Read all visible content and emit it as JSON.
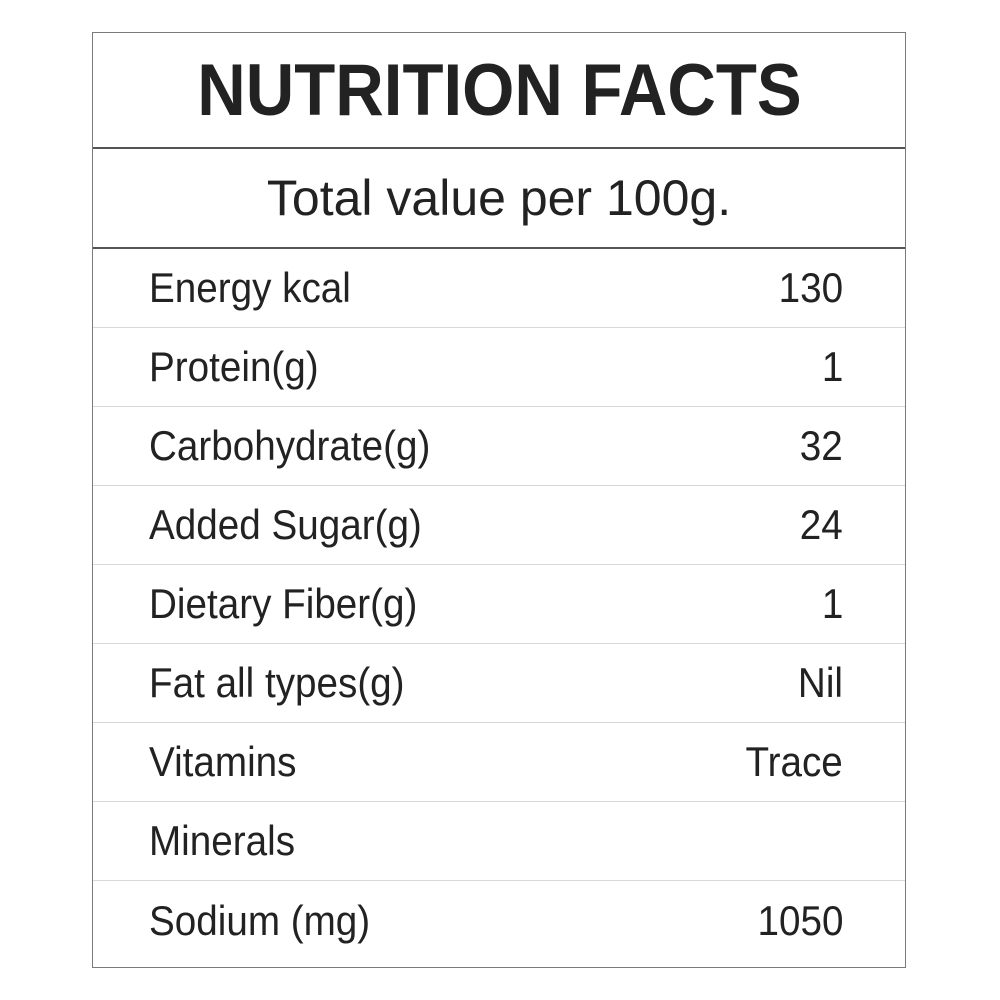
{
  "label": {
    "title": "NUTRITION FACTS",
    "subtitle": "Total value per 100g.",
    "rows": [
      {
        "name": "Energy kcal",
        "value": "130"
      },
      {
        "name": "Protein(g)",
        "value": "1"
      },
      {
        "name": "Carbohydrate(g)",
        "value": "32"
      },
      {
        "name": "Added Sugar(g)",
        "value": "24"
      },
      {
        "name": "Dietary Fiber(g)",
        "value": "1"
      },
      {
        "name": "Fat all types(g)",
        "value": "Nil"
      },
      {
        "name": "Vitamins",
        "value": "Trace"
      },
      {
        "name": "Minerals",
        "value": ""
      },
      {
        "name": "Sodium (mg)",
        "value": "1050"
      }
    ]
  },
  "colors": {
    "text": "#222222",
    "border": "#7a7a7a",
    "row_divider": "#d8d8d8",
    "background": "#ffffff"
  }
}
